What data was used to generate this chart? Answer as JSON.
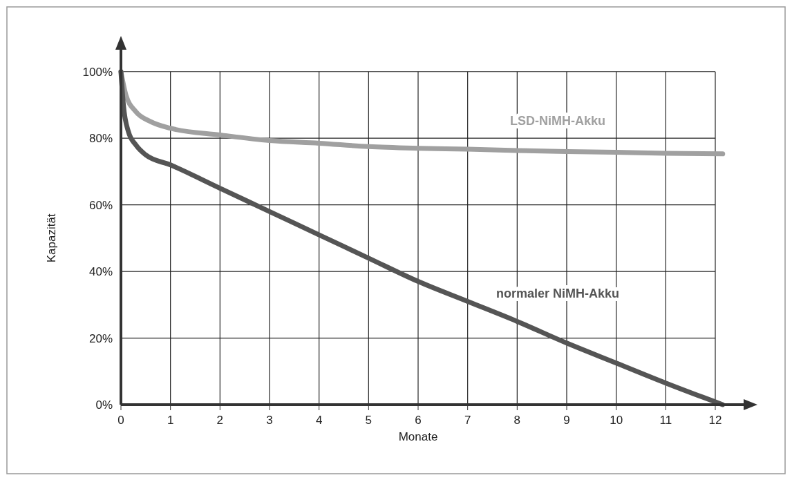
{
  "chart_data": {
    "type": "line",
    "xlabel": "Monate",
    "ylabel": "Kapazität",
    "xlim": [
      0,
      12.6
    ],
    "xticks": [
      0,
      1,
      2,
      3,
      4,
      5,
      6,
      7,
      8,
      9,
      10,
      11,
      12
    ],
    "ylim": [
      0,
      107
    ],
    "yticks": [
      {
        "value": 0,
        "label": "0%"
      },
      {
        "value": 20,
        "label": "20%"
      },
      {
        "value": 40,
        "label": "40%"
      },
      {
        "value": 60,
        "label": "60%"
      },
      {
        "value": 80,
        "label": "80%"
      },
      {
        "value": 100,
        "label": "100%"
      }
    ],
    "grid": true,
    "line_style": "solid",
    "marker": "none",
    "series": [
      {
        "name": "LSD-NiMH-Akku",
        "color": "#a0a0a0",
        "x": [
          0,
          0.1,
          0.3,
          0.6,
          1,
          2,
          3,
          4,
          5,
          6,
          7,
          8,
          9,
          10,
          11,
          12.15
        ],
        "values": [
          100,
          93,
          88,
          85,
          83,
          81,
          79.3,
          78.5,
          77.5,
          77,
          76.7,
          76.3,
          76,
          75.8,
          75.5,
          75.3
        ]
      },
      {
        "name": "normaler NiMH-Akku",
        "color": "#555555",
        "x": [
          0,
          0.05,
          0.15,
          0.3,
          0.5,
          1,
          2,
          3,
          4,
          5,
          6,
          7,
          8,
          9,
          10,
          11,
          12.15
        ],
        "values": [
          100,
          90,
          82,
          78,
          75,
          72,
          65,
          58,
          51,
          44,
          37,
          31,
          25,
          18.5,
          12.5,
          6.5,
          0
        ]
      }
    ]
  }
}
